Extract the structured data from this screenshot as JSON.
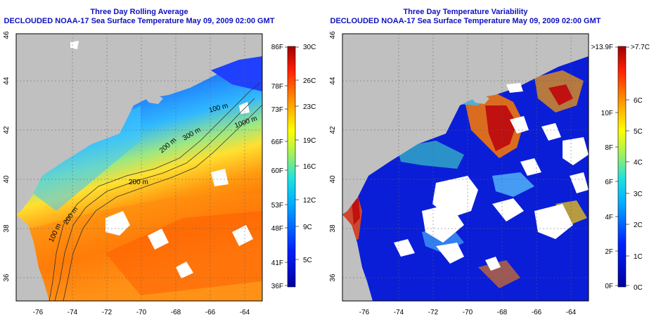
{
  "left_panel": {
    "title_line1": "Three Day Rolling Average",
    "title_line2": "DECLOUDED NOAA-17 Sea Surface Temperature May 09, 2009 02:00 GMT",
    "lat_ticks": [
      "46",
      "44",
      "42",
      "40",
      "38",
      "36"
    ],
    "lon_ticks": [
      "-76",
      "-74",
      "-72",
      "-70",
      "-68",
      "-66",
      "-64"
    ],
    "colorbar": {
      "f_labels": [
        "86F",
        "78F",
        "73F",
        "66F",
        "60F",
        "53F",
        "48F",
        "41F",
        "36F"
      ],
      "c_labels": [
        "30C",
        "26C",
        "23C",
        "19C",
        "16C",
        "12C",
        "9C",
        "5C"
      ]
    },
    "contour_labels": [
      "100 m",
      "200 m",
      "200 m",
      "1000 m",
      "300 m",
      "200 m",
      "100 m"
    ]
  },
  "right_panel": {
    "title_line1": "Three Day Temperature Variability",
    "title_line2": "DECLOUDED NOAA-17 Sea Surface Temperature May 09, 2009 02:00 GMT",
    "lat_ticks": [
      "46",
      "44",
      "42",
      "40",
      "38",
      "36"
    ],
    "lon_ticks": [
      "-76",
      "-74",
      "-72",
      "-70",
      "-68",
      "-66",
      "-64"
    ],
    "colorbar": {
      "f_labels": [
        ">13.9F",
        "10F",
        "8F",
        "6F",
        "4F",
        "2F",
        "0F"
      ],
      "c_labels": [
        ">7.7C",
        "6C",
        "5C",
        "4C",
        "3C",
        "2C",
        "1C",
        "0C"
      ]
    }
  },
  "colors": {
    "land": "#c0c0c0",
    "cloud": "#ffffff",
    "title": "#1010c0"
  }
}
